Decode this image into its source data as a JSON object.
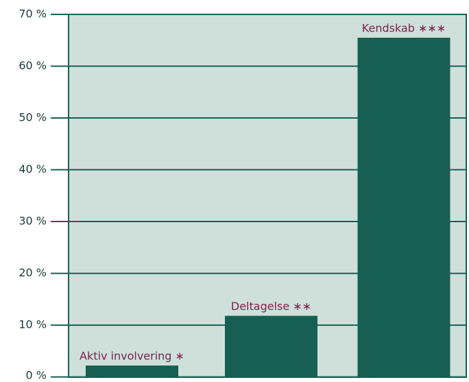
{
  "chart_data": {
    "type": "bar",
    "categories": [
      "Aktiv involvering ∗",
      "Deltagelse ∗∗",
      "Kendskab ∗∗∗"
    ],
    "values": [
      2.2,
      11.8,
      65.5
    ],
    "color": "#165f52",
    "ylim": [
      0,
      70
    ],
    "yticks": [
      {
        "value": 0,
        "label": "0 %"
      },
      {
        "value": 10,
        "label": "10 %"
      },
      {
        "value": 20,
        "label": "20 %"
      },
      {
        "value": 30,
        "label": "30 %"
      },
      {
        "value": 40,
        "label": "40 %"
      },
      {
        "value": 50,
        "label": "50 %"
      },
      {
        "value": 60,
        "label": "60 %"
      },
      {
        "value": 70,
        "label": "70 %"
      }
    ],
    "grid": true
  }
}
